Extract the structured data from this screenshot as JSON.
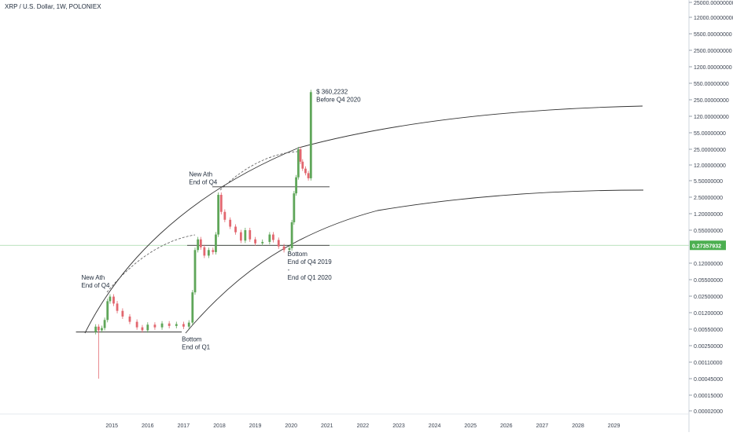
{
  "chart_data": {
    "type": "candlestick",
    "title": "XRP / U.S. Dollar, 1W, POLONIEX",
    "scale": "log",
    "colors": {
      "up": "#5fa659",
      "down": "#e2676f",
      "price_line": "#4caf50",
      "price_bg": "#4caf50",
      "lines": "#333333"
    },
    "y_ticks": [
      {
        "value": 25000,
        "label": "25000.00000000"
      },
      {
        "value": 12000,
        "label": "12000.00000000"
      },
      {
        "value": 5500,
        "label": "5500.00000000"
      },
      {
        "value": 2500,
        "label": "2500.00000000"
      },
      {
        "value": 1200,
        "label": "1200.00000000"
      },
      {
        "value": 550,
        "label": "550.00000000"
      },
      {
        "value": 250,
        "label": "250.00000000"
      },
      {
        "value": 120,
        "label": "120.00000000"
      },
      {
        "value": 55,
        "label": "55.00000000"
      },
      {
        "value": 25,
        "label": "25.00000000"
      },
      {
        "value": 12,
        "label": "12.00000000"
      },
      {
        "value": 5.5,
        "label": "5.50000000"
      },
      {
        "value": 2.5,
        "label": "2.50000000"
      },
      {
        "value": 1.2,
        "label": "1.20000000"
      },
      {
        "value": 0.55,
        "label": "0.55000000"
      },
      {
        "value": 0.12,
        "label": "0.12000000"
      },
      {
        "value": 0.055,
        "label": "0.05500000"
      },
      {
        "value": 0.025,
        "label": "0.02500000"
      },
      {
        "value": 0.012,
        "label": "0.01200000"
      },
      {
        "value": 0.0055,
        "label": "0.00550000"
      },
      {
        "value": 0.0025,
        "label": "0.00250000"
      },
      {
        "value": 0.0011,
        "label": "0.00110000"
      },
      {
        "value": 0.00045,
        "label": "0.00045000"
      },
      {
        "value": 0.00015,
        "label": "0.00015000"
      },
      {
        "value": 2e-05,
        "label": "0.00002000"
      }
    ],
    "x_ticks": [
      "2015",
      "2016",
      "2017",
      "2018",
      "2019",
      "2020",
      "2021",
      "2022",
      "2023",
      "2024",
      "2025",
      "2026",
      "2027",
      "2028",
      "2029"
    ],
    "current_price": {
      "value": 0.27357932,
      "label": "0.27357932"
    },
    "series": [
      {
        "name": "XRPUSD",
        "points": [
          {
            "t": 2014.55,
            "o": 0.0048,
            "c": 0.0062
          },
          {
            "t": 2014.63,
            "o": 0.0062,
            "c": 0.0052
          },
          {
            "t": 2014.72,
            "o": 0.0052,
            "c": 0.0058
          },
          {
            "t": 2014.8,
            "o": 0.0058,
            "c": 0.0085
          },
          {
            "t": 2014.88,
            "o": 0.0085,
            "c": 0.02
          },
          {
            "t": 2014.95,
            "o": 0.02,
            "c": 0.0245
          },
          {
            "t": 2015.05,
            "o": 0.0245,
            "c": 0.018
          },
          {
            "t": 2015.15,
            "o": 0.018,
            "c": 0.013
          },
          {
            "t": 2015.3,
            "o": 0.013,
            "c": 0.01
          },
          {
            "t": 2015.5,
            "o": 0.01,
            "c": 0.0078
          },
          {
            "t": 2015.7,
            "o": 0.0078,
            "c": 0.006
          },
          {
            "t": 2015.85,
            "o": 0.006,
            "c": 0.0052
          },
          {
            "t": 2016.0,
            "o": 0.0052,
            "c": 0.0068
          },
          {
            "t": 2016.2,
            "o": 0.0068,
            "c": 0.006
          },
          {
            "t": 2016.4,
            "o": 0.006,
            "c": 0.0072
          },
          {
            "t": 2016.6,
            "o": 0.0072,
            "c": 0.0064
          },
          {
            "t": 2016.8,
            "o": 0.0064,
            "c": 0.007
          },
          {
            "t": 2017.0,
            "o": 0.007,
            "c": 0.0062
          },
          {
            "t": 2017.15,
            "o": 0.0062,
            "c": 0.0075
          },
          {
            "t": 2017.25,
            "o": 0.0075,
            "c": 0.03
          },
          {
            "t": 2017.32,
            "o": 0.03,
            "c": 0.22
          },
          {
            "t": 2017.4,
            "o": 0.22,
            "c": 0.36
          },
          {
            "t": 2017.48,
            "o": 0.36,
            "c": 0.25
          },
          {
            "t": 2017.58,
            "o": 0.25,
            "c": 0.17
          },
          {
            "t": 2017.7,
            "o": 0.17,
            "c": 0.22
          },
          {
            "t": 2017.82,
            "o": 0.22,
            "c": 0.2
          },
          {
            "t": 2017.9,
            "o": 0.2,
            "c": 0.45
          },
          {
            "t": 2017.97,
            "o": 0.45,
            "c": 2.8
          },
          {
            "t": 2018.05,
            "o": 2.8,
            "c": 1.3
          },
          {
            "t": 2018.15,
            "o": 1.3,
            "c": 0.9
          },
          {
            "t": 2018.3,
            "o": 0.9,
            "c": 0.65
          },
          {
            "t": 2018.45,
            "o": 0.65,
            "c": 0.5
          },
          {
            "t": 2018.6,
            "o": 0.5,
            "c": 0.34
          },
          {
            "t": 2018.72,
            "o": 0.34,
            "c": 0.55
          },
          {
            "t": 2018.85,
            "o": 0.55,
            "c": 0.36
          },
          {
            "t": 2019.0,
            "o": 0.36,
            "c": 0.3
          },
          {
            "t": 2019.2,
            "o": 0.3,
            "c": 0.32
          },
          {
            "t": 2019.4,
            "o": 0.32,
            "c": 0.45
          },
          {
            "t": 2019.5,
            "o": 0.45,
            "c": 0.35
          },
          {
            "t": 2019.65,
            "o": 0.35,
            "c": 0.26
          },
          {
            "t": 2019.8,
            "o": 0.26,
            "c": 0.22
          },
          {
            "t": 2019.95,
            "o": 0.22,
            "c": 0.24
          },
          {
            "t": 2020.02,
            "o": 0.24,
            "c": 0.8
          },
          {
            "t": 2020.08,
            "o": 0.8,
            "c": 3.0
          },
          {
            "t": 2020.14,
            "o": 3.0,
            "c": 6.5
          },
          {
            "t": 2020.2,
            "o": 6.5,
            "c": 25.0
          },
          {
            "t": 2020.26,
            "o": 25.0,
            "c": 14.0
          },
          {
            "t": 2020.32,
            "o": 14.0,
            "c": 10.0
          },
          {
            "t": 2020.4,
            "o": 10.0,
            "c": 8.0
          },
          {
            "t": 2020.48,
            "o": 8.0,
            "c": 6.2
          },
          {
            "t": 2020.55,
            "o": 6.2,
            "c": 360.2232
          }
        ]
      }
    ],
    "horizontal_levels": [
      {
        "value": 0.0048,
        "from": 2014.0,
        "to": 2016.95
      },
      {
        "value": 0.27357932,
        "from": 2017.1,
        "to": 2021.07
      },
      {
        "value": 4.1,
        "from": 2017.8,
        "to": 2021.07
      }
    ],
    "annotations": [
      {
        "lines": [
          "New Ath",
          "End of Q4"
        ],
        "t": 2014.15,
        "value": 0.055
      },
      {
        "lines": [
          "Bottom",
          "End of Q1"
        ],
        "t": 2016.95,
        "value": 0.0031
      },
      {
        "lines": [
          "New Ath",
          "End of Q4"
        ],
        "t": 2017.15,
        "value": 6.8
      },
      {
        "lines": [
          "Bottom",
          "End of Q4 2019",
          "-",
          "End of Q1 2020"
        ],
        "t": 2019.9,
        "value": 0.165
      },
      {
        "lines": [
          "$ 360,2232",
          "Before Q4 2020"
        ],
        "t": 2020.7,
        "value": 330
      }
    ]
  }
}
